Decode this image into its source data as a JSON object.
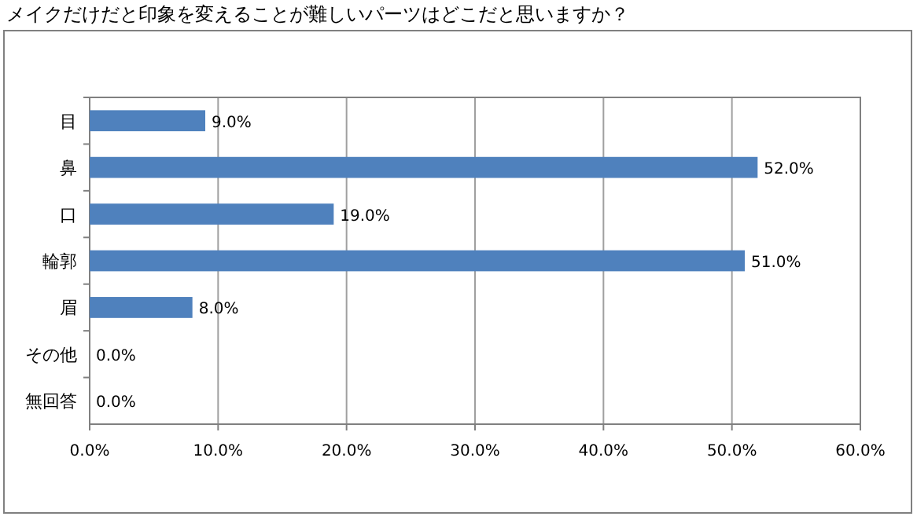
{
  "chart_data": {
    "type": "bar",
    "orientation": "horizontal",
    "title": "メイクだけだと印象を変えることが難しいパーツはどこだと思いますか？",
    "categories": [
      "目",
      "鼻",
      "口",
      "輪郭",
      "眉",
      "その他",
      "無回答"
    ],
    "values": [
      9,
      52,
      19,
      51,
      8,
      0,
      0
    ],
    "value_labels": [
      "9.0%",
      "52.0%",
      "19.0%",
      "51.0%",
      "8.0%",
      "0.0%",
      "0.0%"
    ],
    "color": "#4f81bd",
    "xlim": [
      0,
      60
    ],
    "xticks": [
      {
        "value": 0,
        "label": "0.0%"
      },
      {
        "value": 10,
        "label": "10.0%"
      },
      {
        "value": 20,
        "label": "20.0%"
      },
      {
        "value": 30,
        "label": "30.0%"
      },
      {
        "value": 40,
        "label": "40.0%"
      },
      {
        "value": 50,
        "label": "50.0%"
      },
      {
        "value": 60,
        "label": "60.0%"
      }
    ],
    "grid": "x"
  }
}
